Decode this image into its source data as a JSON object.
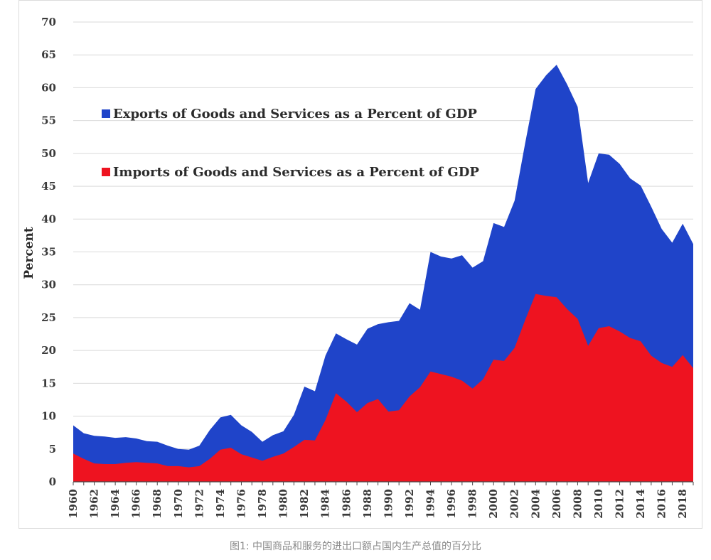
{
  "caption": "图1: 中国商品和服务的进出口额占国内生产总值的百分比",
  "colors": {
    "exports": "#1f44c9",
    "imports": "#ee1320",
    "grid": "#d9d9d9",
    "axis": "#4a4a4a"
  },
  "chart_data": {
    "type": "area",
    "title": "",
    "xlabel": "",
    "ylabel": "Percent",
    "ylim": [
      0,
      70
    ],
    "yticks": [
      0,
      5,
      10,
      15,
      20,
      25,
      30,
      35,
      40,
      45,
      50,
      55,
      60,
      65,
      70
    ],
    "xticks": [
      1960,
      1962,
      1964,
      1966,
      1968,
      1970,
      1972,
      1974,
      1976,
      1978,
      1980,
      1982,
      1984,
      1986,
      1988,
      1990,
      1992,
      1994,
      1996,
      1998,
      2000,
      2002,
      2004,
      2006,
      2008,
      2010,
      2012,
      2014,
      2016,
      2018
    ],
    "x": [
      1960,
      1961,
      1962,
      1963,
      1964,
      1965,
      1966,
      1967,
      1968,
      1969,
      1970,
      1971,
      1972,
      1973,
      1974,
      1975,
      1976,
      1977,
      1978,
      1979,
      1980,
      1981,
      1982,
      1983,
      1984,
      1985,
      1986,
      1987,
      1988,
      1989,
      1990,
      1991,
      1992,
      1993,
      1994,
      1995,
      1996,
      1997,
      1998,
      1999,
      2000,
      2001,
      2002,
      2003,
      2004,
      2005,
      2006,
      2007,
      2008,
      2009,
      2010,
      2011,
      2012,
      2013,
      2014,
      2015,
      2016,
      2017,
      2018,
      2019
    ],
    "legend_position": "top-left",
    "series": [
      {
        "name": "Exports of Goods and Services as a Percent of GDP",
        "values": [
          8.6,
          7.4,
          7.0,
          6.9,
          6.7,
          6.8,
          6.6,
          6.2,
          6.1,
          5.5,
          5.0,
          4.9,
          5.5,
          7.9,
          9.8,
          10.2,
          8.6,
          7.6,
          6.1,
          7.1,
          7.7,
          10.2,
          14.5,
          13.8,
          19.2,
          22.6,
          21.7,
          20.9,
          23.3,
          24.0,
          24.3,
          24.5,
          27.2,
          26.2,
          35.0,
          34.3,
          34.0,
          34.5,
          32.6,
          33.6,
          39.4,
          38.8,
          42.8,
          51.5,
          59.8,
          61.9,
          63.5,
          60.5,
          57.1,
          45.5,
          50.0,
          49.8,
          48.4,
          46.2,
          45.1,
          41.9,
          38.5,
          36.4,
          39.3,
          36.2
        ]
      },
      {
        "name": "Imports of Goods and Services as a Percent of GDP",
        "values": [
          4.3,
          3.5,
          2.8,
          2.7,
          2.7,
          2.9,
          3.0,
          2.9,
          2.8,
          2.4,
          2.4,
          2.2,
          2.4,
          3.5,
          4.9,
          5.2,
          4.2,
          3.7,
          3.2,
          3.8,
          4.3,
          5.3,
          6.4,
          6.3,
          9.4,
          13.5,
          12.2,
          10.6,
          12.0,
          12.6,
          10.7,
          10.9,
          13.0,
          14.4,
          16.8,
          16.4,
          16.0,
          15.4,
          14.2,
          15.6,
          18.6,
          18.4,
          20.4,
          24.6,
          28.6,
          28.3,
          28.1,
          26.3,
          24.8,
          20.7,
          23.4,
          23.7,
          22.9,
          21.9,
          21.4,
          19.2,
          18.1,
          17.5,
          19.3,
          17.3
        ]
      }
    ]
  }
}
